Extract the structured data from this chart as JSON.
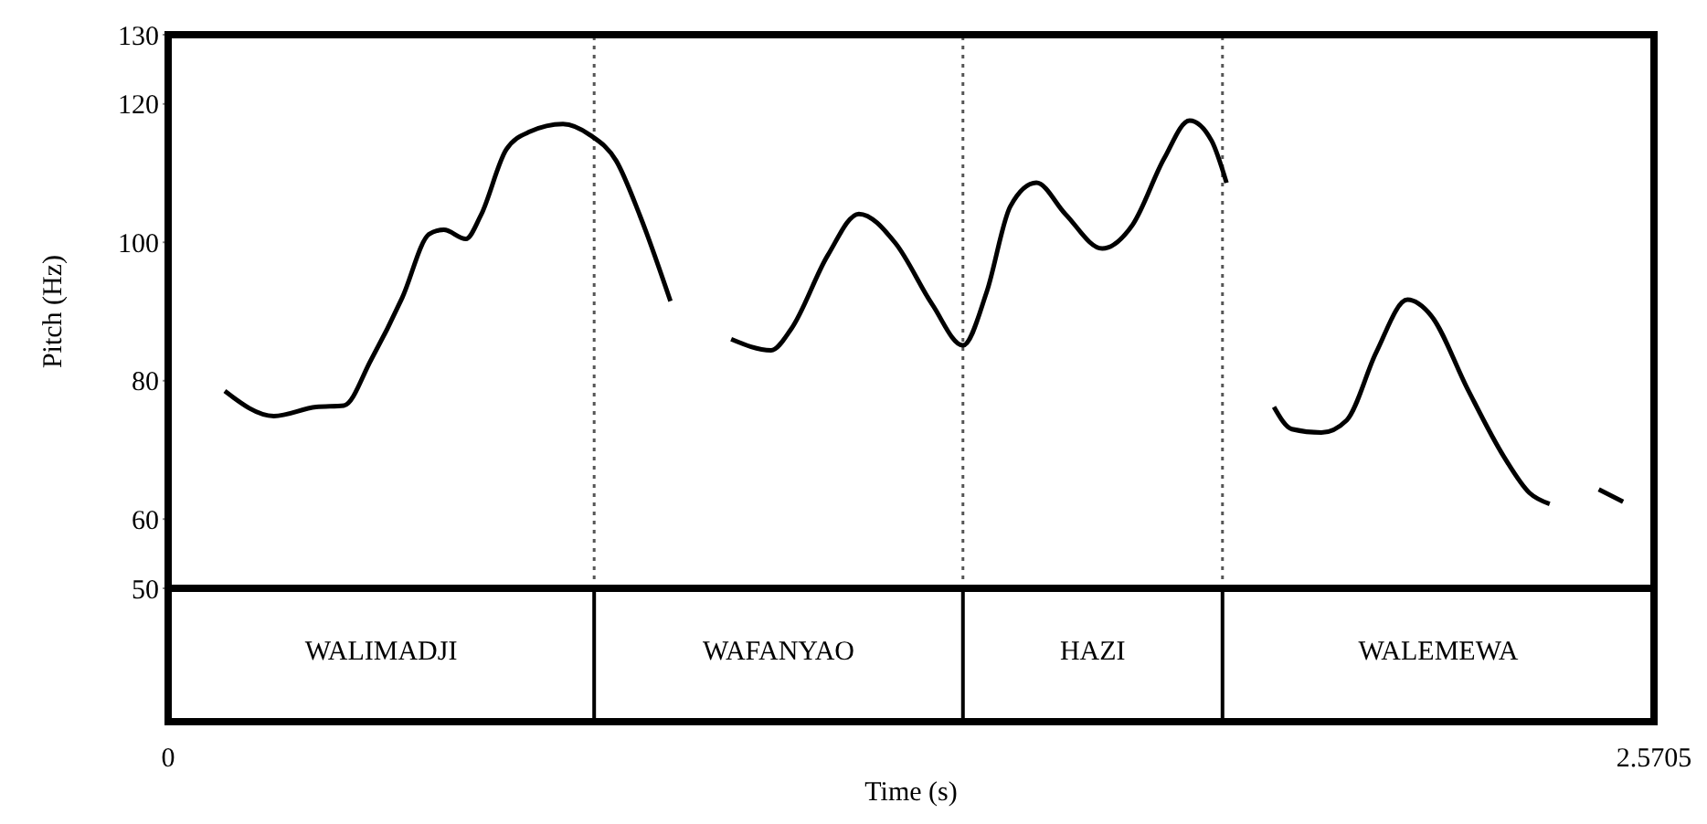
{
  "chart_data": {
    "type": "line",
    "xlabel": "Time (s)",
    "ylabel": "Pitch (Hz)",
    "x": [
      0.098,
      0.183,
      0.256,
      0.304,
      0.351,
      0.405,
      0.452,
      0.477,
      0.515,
      0.541,
      0.585,
      0.626,
      0.683,
      0.73,
      0.775,
      0.816,
      0.869,
      0.92,
      0.974,
      1.043,
      1.078,
      1.141,
      1.195,
      1.258,
      1.322,
      1.375,
      1.416,
      1.457,
      1.502,
      1.552,
      1.616,
      1.669,
      1.723,
      1.767,
      1.805,
      1.831,
      1.87,
      1.913,
      1.944,
      1.995,
      2.039,
      2.09,
      2.144,
      2.185,
      2.248,
      2.311,
      2.355,
      2.39,
      2.43,
      2.475,
      2.517
    ],
    "series": [
      {
        "color": "#000000",
        "values": [
          78.5,
          74.9,
          76.2,
          76.4,
          83.0,
          92.0,
          101.2,
          101.8,
          100.5,
          103.9,
          113.4,
          116.0,
          117.1,
          115.5,
          111.8,
          103.9,
          91.5,
          null,
          86.0,
          84.4,
          87.5,
          98.1,
          104.1,
          99.9,
          91.0,
          85.1,
          92.8,
          105.2,
          108.6,
          104.1,
          99.1,
          102.6,
          112.1,
          117.6,
          114.7,
          108.6,
          null,
          76.2,
          73.0,
          72.5,
          74.3,
          84.1,
          91.7,
          89.4,
          78.8,
          69.0,
          63.8,
          62.2,
          null,
          64.3,
          62.5
        ]
      }
    ],
    "xlim": [
      0,
      2.5705
    ],
    "xticks": [
      0,
      2.5705
    ],
    "ylim": [
      50,
      130
    ],
    "yticks": [
      50,
      60,
      80,
      100,
      120,
      130
    ],
    "ref_lines": [
      {
        "axis": "x",
        "value": 0.737,
        "line_style": "dotted",
        "color": "#555555"
      },
      {
        "axis": "x",
        "value": 1.375,
        "line_style": "dotted",
        "color": "#555555"
      },
      {
        "axis": "x",
        "value": 1.824,
        "line_style": "dotted",
        "color": "#555555"
      }
    ],
    "annotations": [
      "WALIMADJI",
      "WAFANYAO",
      "HAZI",
      "WALEMEWA"
    ],
    "grid": false,
    "legend": false,
    "marker": "none",
    "line_style": "solid"
  }
}
